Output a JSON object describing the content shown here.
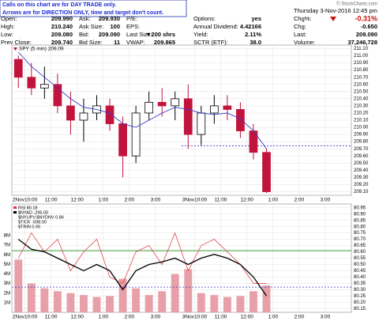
{
  "header": {
    "notice": [
      "Calls on this chart are for DAY TRADE only.",
      "Arrows are for DIRECTION ONLY, time and target don't count."
    ],
    "date_time": "Thursday  3-Nov-2016  12:45 pm",
    "copyright": "© StockCharts.com",
    "columns": [
      [
        [
          "Open:",
          "209.990"
        ],
        [
          "High:",
          "210.240"
        ],
        [
          "Low:",
          "209.080"
        ],
        [
          "Prev Close:",
          "209.740"
        ]
      ],
      [
        [
          "Ask:",
          "209.930"
        ],
        [
          "Ask Size:",
          "100"
        ],
        [
          "Bid:",
          "209.090"
        ],
        [
          "Bid Size:",
          "11"
        ]
      ],
      [
        [
          "P/E:"
        ],
        [
          "EPS:"
        ],
        [
          "Last Size:",
          "▼200 shrs"
        ],
        [
          "VWAP:",
          "209.865"
        ]
      ],
      [
        [
          "Options:",
          "yes"
        ],
        [
          "Annual Dividend:",
          "4.42166"
        ],
        [
          "Yield:",
          "2.11%"
        ],
        [
          "SCTR (ETF):",
          "38.0"
        ]
      ],
      [
        [
          "Chg%:",
          "-0.31%"
        ],
        [
          "Chg:",
          "-0.650"
        ],
        [
          "Last:",
          "209.090"
        ],
        [
          "Volume:",
          "37,246,728"
        ]
      ]
    ]
  },
  "chart_data": [
    {
      "type": "candlestick",
      "legend_label": "SPY (5 min) 209.09",
      "up_color": "#000000",
      "down_color": "#c0143c",
      "open": [
        210.95,
        210.7,
        210.55,
        210.6,
        210.3,
        210.1,
        210.2,
        210.3,
        210.05,
        209.6,
        210.2,
        210.35,
        210.3,
        210.4,
        209.9,
        210.2,
        210.3,
        210.25,
        209.95,
        209.65
      ],
      "high": [
        211.0,
        210.9,
        210.85,
        210.75,
        210.5,
        210.4,
        210.45,
        210.4,
        210.15,
        210.3,
        210.5,
        210.55,
        210.5,
        210.6,
        210.3,
        210.45,
        210.45,
        210.35,
        210.05,
        209.7
      ],
      "low": [
        210.55,
        210.45,
        210.4,
        210.2,
        209.9,
        209.8,
        210.1,
        209.95,
        209.3,
        209.5,
        210.1,
        210.15,
        210.1,
        209.7,
        209.75,
        210.05,
        210.1,
        209.85,
        209.55,
        209.08
      ],
      "close": [
        210.7,
        210.55,
        210.6,
        210.3,
        210.1,
        210.2,
        210.3,
        210.05,
        209.6,
        210.2,
        210.35,
        210.3,
        210.4,
        209.9,
        210.2,
        210.3,
        210.25,
        209.95,
        209.65,
        209.1
      ],
      "ma": {
        "color": "#3a3acc",
        "values": [
          211.05,
          210.85,
          210.7,
          210.55,
          210.4,
          210.28,
          210.25,
          210.2,
          210.05,
          210.0,
          210.1,
          210.2,
          210.28,
          210.25,
          210.2,
          210.18,
          210.2,
          210.12,
          209.95,
          209.7
        ]
      },
      "reference_line": 209.74,
      "xlim": [
        0,
        26
      ],
      "xticks": [
        {
          "value": 1,
          "label": "2Nov10:00"
        },
        {
          "value": 3,
          "label": "11:00"
        },
        {
          "value": 5,
          "label": "12:00"
        },
        {
          "value": 7,
          "label": "1:00"
        },
        {
          "value": 9,
          "label": "2:00"
        },
        {
          "value": 11,
          "label": "3:00"
        },
        {
          "value": 14,
          "label": "3Nov10:00"
        },
        {
          "value": 16,
          "label": "11:00"
        },
        {
          "value": 18,
          "label": "12:00"
        },
        {
          "value": 20,
          "label": "1:00"
        },
        {
          "value": 22,
          "label": "2:00"
        },
        {
          "value": 24,
          "label": "3:00"
        }
      ],
      "ylim": [
        209.05,
        211.15
      ],
      "yticks": [
        {
          "value": 211.1,
          "label": "211.10"
        },
        {
          "value": 211.0,
          "label": "211.00"
        },
        {
          "value": 210.9,
          "label": "210.90"
        },
        {
          "value": 210.8,
          "label": "210.80"
        },
        {
          "value": 210.7,
          "label": "210.70"
        },
        {
          "value": 210.6,
          "label": "210.60"
        },
        {
          "value": 210.5,
          "label": "210.50"
        },
        {
          "value": 210.4,
          "label": "210.40"
        },
        {
          "value": 210.3,
          "label": "210.30"
        },
        {
          "value": 210.2,
          "label": "210.20"
        },
        {
          "value": 210.1,
          "label": "210.10"
        },
        {
          "value": 210.0,
          "label": "210.00"
        },
        {
          "value": 209.9,
          "label": "209.90"
        },
        {
          "value": 209.8,
          "label": "209.80"
        },
        {
          "value": 209.7,
          "label": "209.70"
        },
        {
          "value": 209.6,
          "label": "209.60"
        },
        {
          "value": 209.5,
          "label": "209.50"
        },
        {
          "value": 209.4,
          "label": "209.40"
        },
        {
          "value": 209.3,
          "label": "209.30"
        },
        {
          "value": 209.2,
          "label": "209.20"
        },
        {
          "value": 209.1,
          "label": "209.10"
        }
      ],
      "grid": true
    },
    {
      "type": "indicator",
      "series": [
        {
          "name": "RSI 80.18",
          "color": "#e0303c",
          "values": [
            80.55,
            80.75,
            80.6,
            80.7,
            80.45,
            80.6,
            80.7,
            80.4,
            80.35,
            80.6,
            80.65,
            80.5,
            80.75,
            80.45,
            80.65,
            80.7,
            80.6,
            80.5,
            80.35,
            80.35
          ]
        },
        {
          "name": "$NYAD -295.00",
          "color": "#000000",
          "values": [
            80.7,
            80.62,
            80.6,
            80.55,
            80.5,
            80.45,
            80.5,
            80.45,
            80.3,
            80.45,
            80.5,
            80.52,
            80.55,
            80.5,
            80.55,
            80.58,
            80.55,
            80.5,
            80.4,
            80.25
          ]
        }
      ],
      "other_legend": [
        "$NYUPV:$NYDNV 0.86",
        "$TICK -598.00",
        "$TRIN 0.95"
      ],
      "levels": [
        {
          "value": 80.61,
          "color": "#2a9a2a"
        },
        {
          "value": 80.32,
          "color": "#3a3acc"
        }
      ],
      "volume": {
        "color": "#e8a0a8",
        "values": [
          5500000,
          3000000,
          2500000,
          2200000,
          2000000,
          1800000,
          1600000,
          1700000,
          3500000,
          2500000,
          1800000,
          2200000,
          4000000,
          4500000,
          2000000,
          1800000,
          1600000,
          1700000,
          2200000,
          2800000
        ]
      },
      "vol_ylim": [
        0,
        11300000
      ],
      "vol_yticks": [
        {
          "value": 1000000,
          "label": "1M"
        },
        {
          "value": 2000000,
          "label": "2M"
        },
        {
          "value": 3000000,
          "label": "3M"
        },
        {
          "value": 4000000,
          "label": "4M"
        },
        {
          "value": 5000000,
          "label": "5M"
        },
        {
          "value": 6000000,
          "label": "6M"
        },
        {
          "value": 7000000,
          "label": "7M"
        },
        {
          "value": 8000000,
          "label": "8M"
        }
      ],
      "xlim": [
        0,
        26
      ],
      "xticks": [
        {
          "value": 1,
          "label": "2Nov10:00"
        },
        {
          "value": 3,
          "label": "11:00"
        },
        {
          "value": 5,
          "label": "12:00"
        },
        {
          "value": 7,
          "label": "1:00"
        },
        {
          "value": 9,
          "label": "2:00"
        },
        {
          "value": 11,
          "label": "3:00"
        },
        {
          "value": 14,
          "label": "3Nov10:00"
        },
        {
          "value": 16,
          "label": "11:00"
        },
        {
          "value": 18,
          "label": "12:00"
        },
        {
          "value": 20,
          "label": "1:00"
        },
        {
          "value": 22,
          "label": "2:00"
        },
        {
          "value": 24,
          "label": "3:00"
        }
      ],
      "ylim": [
        80.12,
        80.98
      ],
      "yticks": [
        {
          "value": 80.95,
          "label": "80.95"
        },
        {
          "value": 80.9,
          "label": "80.90"
        },
        {
          "value": 80.85,
          "label": "80.85"
        },
        {
          "value": 80.8,
          "label": "80.80"
        },
        {
          "value": 80.75,
          "label": "80.75"
        },
        {
          "value": 80.7,
          "label": "80.70"
        },
        {
          "value": 80.65,
          "label": "80.65"
        },
        {
          "value": 80.6,
          "label": "80.60"
        },
        {
          "value": 80.55,
          "label": "80.55"
        },
        {
          "value": 80.5,
          "label": "80.50"
        },
        {
          "value": 80.45,
          "label": "80.45"
        },
        {
          "value": 80.4,
          "label": "80.40"
        },
        {
          "value": 80.35,
          "label": "80.35"
        },
        {
          "value": 80.3,
          "label": "80.30"
        },
        {
          "value": 80.25,
          "label": "80.25"
        },
        {
          "value": 80.2,
          "label": "80.20"
        },
        {
          "value": 80.15,
          "label": "80.15"
        }
      ],
      "grid": true
    }
  ]
}
